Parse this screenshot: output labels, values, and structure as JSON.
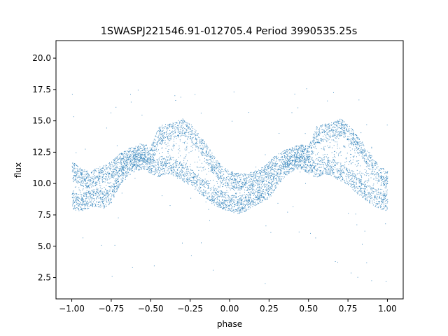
{
  "chart_data": {
    "type": "scatter",
    "title": "1SWASPJ221546.91-012705.4 Period 3990535.25s",
    "xlabel": "phase",
    "ylabel": "flux",
    "xlim": [
      -1.1,
      1.1
    ],
    "ylim": [
      0.8,
      21.4
    ],
    "xticks": [
      -1.0,
      -0.75,
      -0.5,
      -0.25,
      0.0,
      0.25,
      0.5,
      0.75,
      1.0
    ],
    "xtick_labels": [
      "−1.00",
      "−0.75",
      "−0.50",
      "−0.25",
      "0.00",
      "0.25",
      "0.50",
      "0.75",
      "1.00"
    ],
    "yticks": [
      2.5,
      5.0,
      7.5,
      10.0,
      12.5,
      15.0,
      17.5,
      20.0
    ],
    "ytick_labels": [
      "2.5",
      "5.0",
      "7.5",
      "10.0",
      "12.5",
      "15.0",
      "17.5",
      "20.0"
    ],
    "grid": false,
    "point_color": "#1f77b4",
    "series": [
      {
        "values_description_free": true,
        "x": [
          -1.0,
          -0.95,
          -0.9,
          -0.85,
          -0.8,
          -0.75,
          -0.7,
          -0.65,
          -0.6,
          -0.55,
          -0.5,
          -0.45,
          -0.4,
          -0.35,
          -0.3,
          -0.25,
          -0.2,
          -0.15,
          -0.1,
          -0.05,
          0.0,
          0.05,
          0.1,
          0.15,
          0.2,
          0.25,
          0.3,
          0.35,
          0.4,
          0.45,
          0.5,
          0.55,
          0.6,
          0.65,
          0.7,
          0.75,
          0.8,
          0.85,
          0.9,
          0.95,
          1.0
        ],
        "upper_envelope": [
          11.8,
          11.3,
          11.0,
          11.2,
          11.5,
          11.8,
          12.4,
          12.8,
          13.0,
          13.2,
          13.0,
          14.6,
          14.8,
          14.9,
          15.2,
          14.8,
          14.0,
          13.2,
          12.2,
          11.4,
          11.0,
          10.9,
          10.8,
          11.0,
          11.3,
          11.8,
          12.4,
          12.7,
          13.0,
          13.2,
          13.0,
          14.6,
          14.8,
          14.9,
          15.2,
          14.8,
          14.0,
          13.2,
          12.2,
          11.4,
          11.0
        ],
        "lower_envelope": [
          8.0,
          7.8,
          8.0,
          8.2,
          8.0,
          8.5,
          9.8,
          10.6,
          11.0,
          11.2,
          10.8,
          10.5,
          10.8,
          10.6,
          10.2,
          9.9,
          9.3,
          8.8,
          8.3,
          8.0,
          7.8,
          7.6,
          7.8,
          8.2,
          8.5,
          8.8,
          9.8,
          10.6,
          11.0,
          11.2,
          10.8,
          10.5,
          10.8,
          10.6,
          10.2,
          9.9,
          9.3,
          8.8,
          8.3,
          8.0,
          7.8
        ]
      }
    ]
  }
}
